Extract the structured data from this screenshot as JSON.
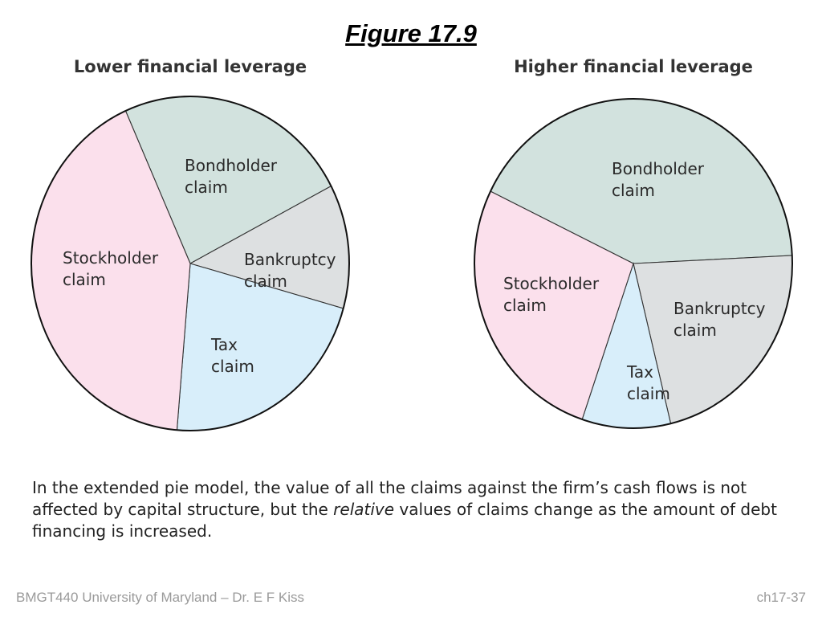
{
  "figure_title": "Figure 17.9",
  "caption": {
    "part1": "In the extended pie model, the value of all the claims against the firm’s cash flows is not affected by capital structure, but the ",
    "emphasis": "relative",
    "part2": " values of claims change as the amount of debt financing is increased."
  },
  "footer": {
    "left": "BMGT440 University of Maryland – Dr. E F Kiss",
    "right": "ch17-37"
  },
  "colors": {
    "stockholder": "#fbe0ec",
    "bondholder": "#d2e2de",
    "bankruptcy": "#dde0e1",
    "tax": "#d8eefa"
  },
  "chart_data": [
    {
      "type": "pie",
      "title": "Lower financial leverage",
      "slices": [
        {
          "key": "bondholder",
          "label": [
            "Bondholder",
            "claim"
          ],
          "value": 24
        },
        {
          "key": "bankruptcy",
          "label": [
            "Bankruptcy",
            "claim"
          ],
          "value": 12
        },
        {
          "key": "tax",
          "label": [
            "Tax",
            "claim"
          ],
          "value": 22
        },
        {
          "key": "stockholder",
          "label": [
            "Stockholder",
            "claim"
          ],
          "value": 42
        }
      ]
    },
    {
      "type": "pie",
      "title": "Higher financial leverage",
      "slices": [
        {
          "key": "bondholder",
          "label": [
            "Bondholder",
            "claim"
          ],
          "value": 42
        },
        {
          "key": "bankruptcy",
          "label": [
            "Bankruptcy",
            "claim"
          ],
          "value": 22
        },
        {
          "key": "tax",
          "label": [
            "Tax",
            "claim"
          ],
          "value": 9
        },
        {
          "key": "stockholder",
          "label": [
            "Stockholder",
            "claim"
          ],
          "value": 27
        }
      ]
    }
  ]
}
